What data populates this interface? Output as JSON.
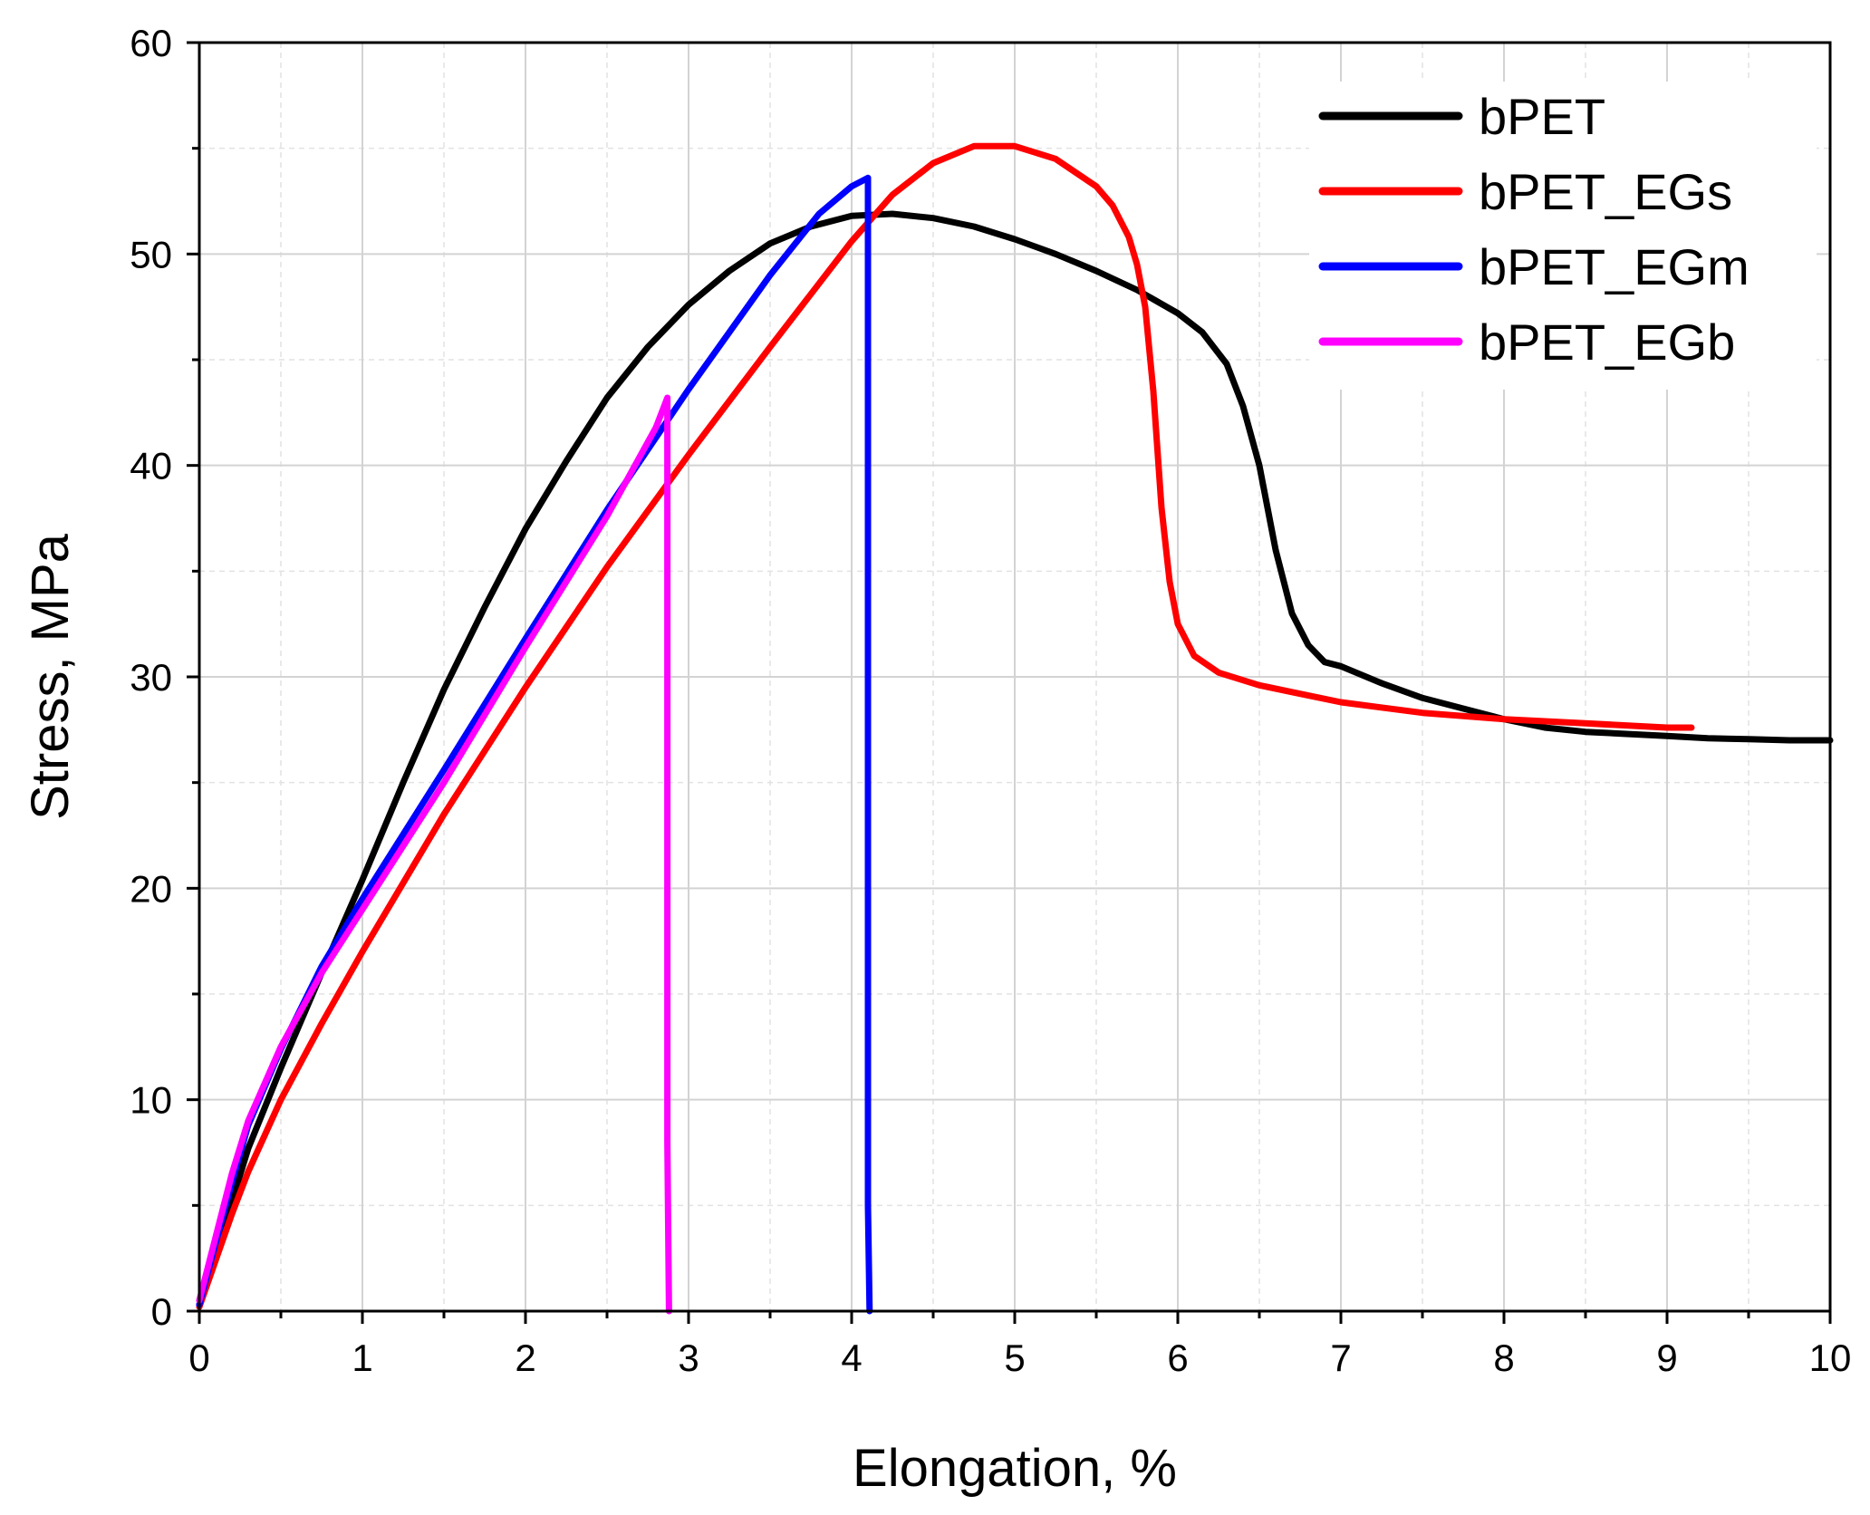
{
  "chart_data": {
    "type": "line",
    "title": "",
    "xlabel": "Elongation, %",
    "ylabel": "Stress, MPa",
    "xlim": [
      0,
      10
    ],
    "ylim": [
      0,
      60
    ],
    "x_ticks": [
      0,
      1,
      2,
      3,
      4,
      5,
      6,
      7,
      8,
      9,
      10
    ],
    "y_ticks": [
      0,
      10,
      20,
      30,
      40,
      50,
      60
    ],
    "grid": true,
    "legend_position": "top-right",
    "series": [
      {
        "name": "bPET",
        "color": "#000000",
        "x": [
          0.0,
          0.1,
          0.2,
          0.3,
          0.5,
          0.75,
          1.0,
          1.25,
          1.5,
          1.75,
          2.0,
          2.25,
          2.5,
          2.75,
          3.0,
          3.25,
          3.5,
          3.75,
          4.0,
          4.25,
          4.5,
          4.75,
          5.0,
          5.25,
          5.5,
          5.75,
          6.0,
          6.15,
          6.3,
          6.4,
          6.5,
          6.6,
          6.7,
          6.8,
          6.9,
          7.0,
          7.25,
          7.5,
          7.75,
          8.0,
          8.25,
          8.5,
          8.75,
          9.0,
          9.25,
          9.5,
          9.75,
          10.0
        ],
        "y": [
          0.3,
          2.7,
          5.2,
          7.7,
          11.5,
          16.0,
          20.4,
          25.0,
          29.4,
          33.3,
          37.0,
          40.2,
          43.2,
          45.6,
          47.6,
          49.2,
          50.5,
          51.3,
          51.8,
          51.9,
          51.7,
          51.3,
          50.7,
          50.0,
          49.2,
          48.3,
          47.2,
          46.3,
          44.8,
          42.8,
          40.0,
          36.0,
          33.0,
          31.5,
          30.7,
          30.5,
          29.7,
          29.0,
          28.5,
          28.0,
          27.6,
          27.4,
          27.3,
          27.2,
          27.1,
          27.05,
          27.0,
          27.0
        ]
      },
      {
        "name": "bPET_EGs",
        "color": "#ff0000",
        "x": [
          0.0,
          0.1,
          0.2,
          0.3,
          0.5,
          0.75,
          1.0,
          1.5,
          2.0,
          2.5,
          3.0,
          3.5,
          4.0,
          4.25,
          4.5,
          4.75,
          5.0,
          5.25,
          5.5,
          5.6,
          5.7,
          5.75,
          5.8,
          5.85,
          5.9,
          5.95,
          6.0,
          6.1,
          6.25,
          6.5,
          6.75,
          7.0,
          7.5,
          8.0,
          8.5,
          9.0,
          9.15
        ],
        "y": [
          0.2,
          2.4,
          4.6,
          6.6,
          10.0,
          13.6,
          17.0,
          23.5,
          29.5,
          35.2,
          40.5,
          45.6,
          50.6,
          52.8,
          54.3,
          55.1,
          55.1,
          54.5,
          53.2,
          52.3,
          50.8,
          49.5,
          47.5,
          43.5,
          38.0,
          34.5,
          32.5,
          31.0,
          30.2,
          29.6,
          29.2,
          28.8,
          28.3,
          28.0,
          27.8,
          27.6,
          27.6
        ]
      },
      {
        "name": "bPET_EGm",
        "color": "#0000ff",
        "x": [
          0.0,
          0.1,
          0.2,
          0.3,
          0.5,
          0.75,
          1.0,
          1.5,
          2.0,
          2.5,
          3.0,
          3.5,
          3.8,
          4.0,
          4.1,
          4.1,
          4.11
        ],
        "y": [
          0.3,
          3.2,
          6.1,
          8.8,
          12.4,
          16.3,
          19.5,
          25.6,
          31.8,
          37.9,
          43.6,
          49.0,
          51.9,
          53.2,
          53.6,
          5.0,
          0.0
        ]
      },
      {
        "name": "bPET_EGb",
        "color": "#ff00ff",
        "x": [
          0.0,
          0.1,
          0.2,
          0.3,
          0.5,
          0.75,
          1.0,
          1.5,
          2.0,
          2.5,
          2.8,
          2.87,
          2.87,
          2.88
        ],
        "y": [
          0.5,
          3.5,
          6.5,
          9.0,
          12.5,
          16.0,
          19.0,
          25.0,
          31.4,
          37.6,
          41.8,
          43.2,
          8.0,
          0.0
        ]
      }
    ]
  }
}
